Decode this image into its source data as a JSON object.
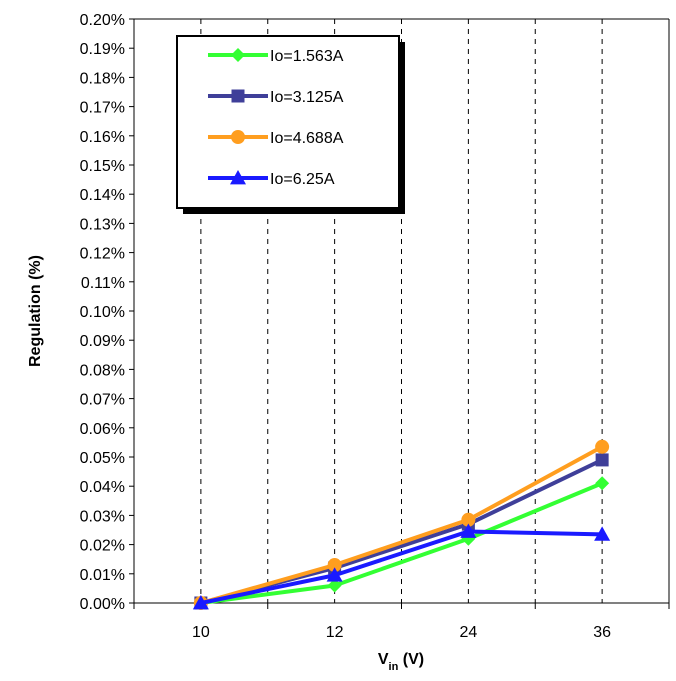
{
  "chart_data": {
    "type": "line",
    "categories": [
      "10",
      "12",
      "24",
      "36"
    ],
    "xlabel_main": "V",
    "xlabel_sub": "in",
    "xlabel_unit": " (V)",
    "ylabel": "Regulation (%)",
    "ylim": [
      0,
      0.2
    ],
    "ytick_step": 0.01,
    "ytick_decimals": 2,
    "ytick_suffix": "%",
    "grid": "dashed vertical",
    "legend_position": "top-left",
    "series": [
      {
        "name": "Io=1.563A",
        "values": [
          0.0,
          0.006,
          0.022,
          0.041
        ],
        "color": "#33ff33",
        "marker": "diamond"
      },
      {
        "name": "Io=3.125A",
        "values": [
          0.0,
          0.012,
          0.027,
          0.049
        ],
        "color": "#3f3f99",
        "marker": "square"
      },
      {
        "name": "Io=4.688A",
        "values": [
          0.0,
          0.013,
          0.0285,
          0.0535
        ],
        "color": "#ff9e1f",
        "marker": "circle"
      },
      {
        "name": "Io=6.25A",
        "values": [
          0.0,
          0.0095,
          0.0245,
          0.0235
        ],
        "color": "#1a1aff",
        "marker": "triangle"
      }
    ]
  }
}
